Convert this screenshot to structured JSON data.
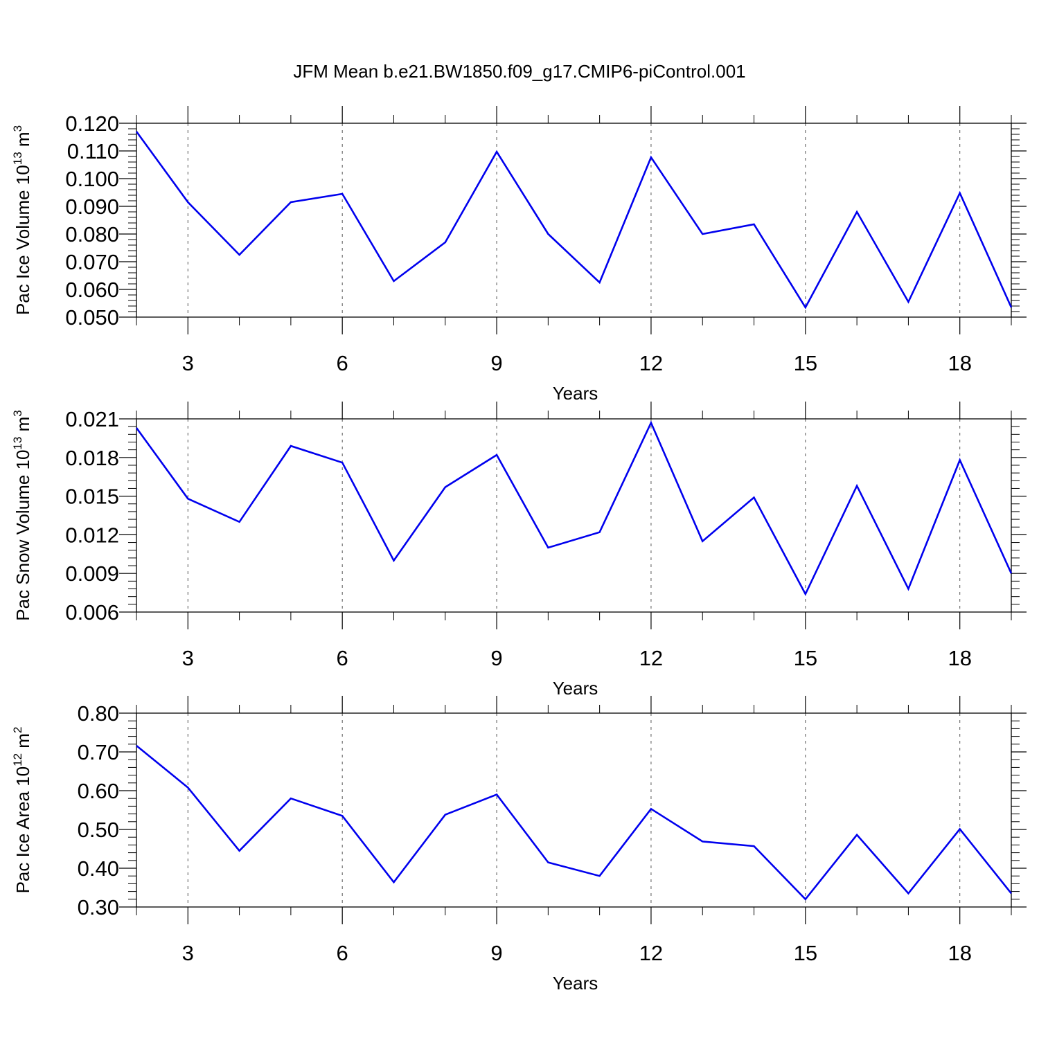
{
  "title": "JFM Mean b.e21.BW1850.f09_g17.CMIP6-piControl.001",
  "colors": {
    "line": "#0000ee",
    "axis": "#000000",
    "grid": "#555555",
    "background": "#ffffff"
  },
  "chart_data": [
    {
      "type": "line",
      "title": "",
      "xlabel": "Years",
      "ylabel": {
        "base": "Pac Ice Volume 10",
        "exp": "13",
        "unit": " m",
        "unit_exp": "3"
      },
      "xlim": [
        2,
        19
      ],
      "ylim": [
        0.05,
        0.12
      ],
      "xticks": [
        3,
        6,
        9,
        12,
        15,
        18
      ],
      "xtick_labels": [
        "3",
        "6",
        "9",
        "12",
        "15",
        "18"
      ],
      "yticks": [
        0.05,
        0.06,
        0.07,
        0.08,
        0.09,
        0.1,
        0.11,
        0.12
      ],
      "ytick_labels": [
        "0.050",
        "0.060",
        "0.070",
        "0.080",
        "0.090",
        "0.100",
        "0.110",
        "0.120"
      ],
      "grid": "vertical dashed at x ticks",
      "x": [
        2,
        3,
        4,
        5,
        6,
        7,
        8,
        9,
        10,
        11,
        12,
        13,
        14,
        15,
        16,
        17,
        18,
        19
      ],
      "series": [
        {
          "values": [
            0.117,
            0.0915,
            0.0725,
            0.0915,
            0.0945,
            0.063,
            0.077,
            0.1097,
            0.08,
            0.0625,
            0.1077,
            0.08,
            0.0835,
            0.0535,
            0.088,
            0.0555,
            0.0948,
            0.0535
          ]
        }
      ]
    },
    {
      "type": "line",
      "title": "",
      "xlabel": "Years",
      "ylabel": {
        "base": "Pac Snow Volume 10",
        "exp": "13",
        "unit": " m",
        "unit_exp": "3"
      },
      "xlim": [
        2,
        19
      ],
      "ylim": [
        0.006,
        0.021
      ],
      "xticks": [
        3,
        6,
        9,
        12,
        15,
        18
      ],
      "xtick_labels": [
        "3",
        "6",
        "9",
        "12",
        "15",
        "18"
      ],
      "yticks": [
        0.006,
        0.009,
        0.012,
        0.015,
        0.018,
        0.021
      ],
      "ytick_labels": [
        "0.006",
        "0.009",
        "0.012",
        "0.015",
        "0.018",
        "0.021"
      ],
      "grid": "vertical dashed at x ticks",
      "x": [
        2,
        3,
        4,
        5,
        6,
        7,
        8,
        9,
        10,
        11,
        12,
        13,
        14,
        15,
        16,
        17,
        18,
        19
      ],
      "series": [
        {
          "values": [
            0.0203,
            0.0148,
            0.013,
            0.0189,
            0.0176,
            0.01,
            0.0157,
            0.0182,
            0.011,
            0.0122,
            0.0207,
            0.0115,
            0.0149,
            0.0074,
            0.0158,
            0.0078,
            0.0178,
            0.009
          ]
        }
      ]
    },
    {
      "type": "line",
      "title": "",
      "xlabel": "Years",
      "ylabel": {
        "base": "Pac Ice Area 10",
        "exp": "12",
        "unit": " m",
        "unit_exp": "2"
      },
      "xlim": [
        2,
        19
      ],
      "ylim": [
        0.3,
        0.8
      ],
      "xticks": [
        3,
        6,
        9,
        12,
        15,
        18
      ],
      "xtick_labels": [
        "3",
        "6",
        "9",
        "12",
        "15",
        "18"
      ],
      "yticks": [
        0.3,
        0.4,
        0.5,
        0.6,
        0.7,
        0.8
      ],
      "ytick_labels": [
        "0.30",
        "0.40",
        "0.50",
        "0.60",
        "0.70",
        "0.80"
      ],
      "grid": "vertical dashed at x ticks",
      "x": [
        2,
        3,
        4,
        5,
        6,
        7,
        8,
        9,
        10,
        11,
        12,
        13,
        14,
        15,
        16,
        17,
        18,
        19
      ],
      "series": [
        {
          "values": [
            0.716,
            0.608,
            0.445,
            0.58,
            0.535,
            0.364,
            0.538,
            0.59,
            0.415,
            0.38,
            0.553,
            0.469,
            0.457,
            0.32,
            0.486,
            0.335,
            0.501,
            0.335
          ]
        }
      ]
    }
  ]
}
